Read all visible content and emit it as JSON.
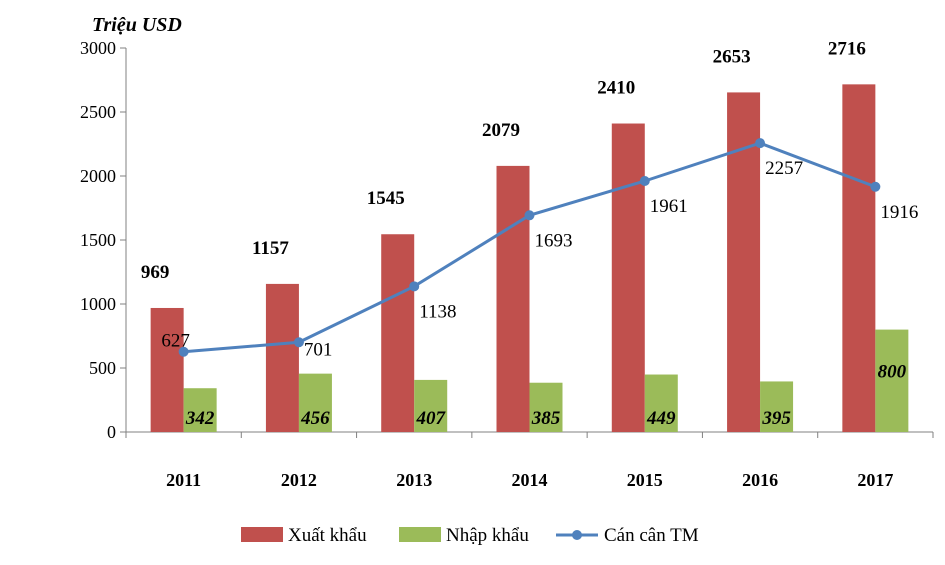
{
  "chart_data": {
    "type": "bar",
    "title": "",
    "ylabel": "Triệu USD",
    "xlabel": "",
    "ylim": [
      0,
      3000
    ],
    "yticks": [
      0,
      500,
      1000,
      1500,
      2000,
      2500,
      3000
    ],
    "categories": [
      "2011",
      "2012",
      "2013",
      "2014",
      "2015",
      "2016",
      "2017"
    ],
    "series": [
      {
        "name": "Xuất khẩu",
        "kind": "bar",
        "color": "#C0504D",
        "values": [
          969,
          1157,
          1545,
          2079,
          2410,
          2653,
          2716
        ]
      },
      {
        "name": "Nhập khẩu",
        "kind": "bar",
        "color": "#9BBB59",
        "values": [
          342,
          456,
          407,
          385,
          449,
          395,
          800
        ]
      },
      {
        "name": "Cán cân TM",
        "kind": "line",
        "color": "#4F81BD",
        "values": [
          627,
          701,
          1138,
          1693,
          1961,
          2257,
          1916
        ]
      }
    ],
    "legend": {
      "position": "bottom"
    }
  }
}
